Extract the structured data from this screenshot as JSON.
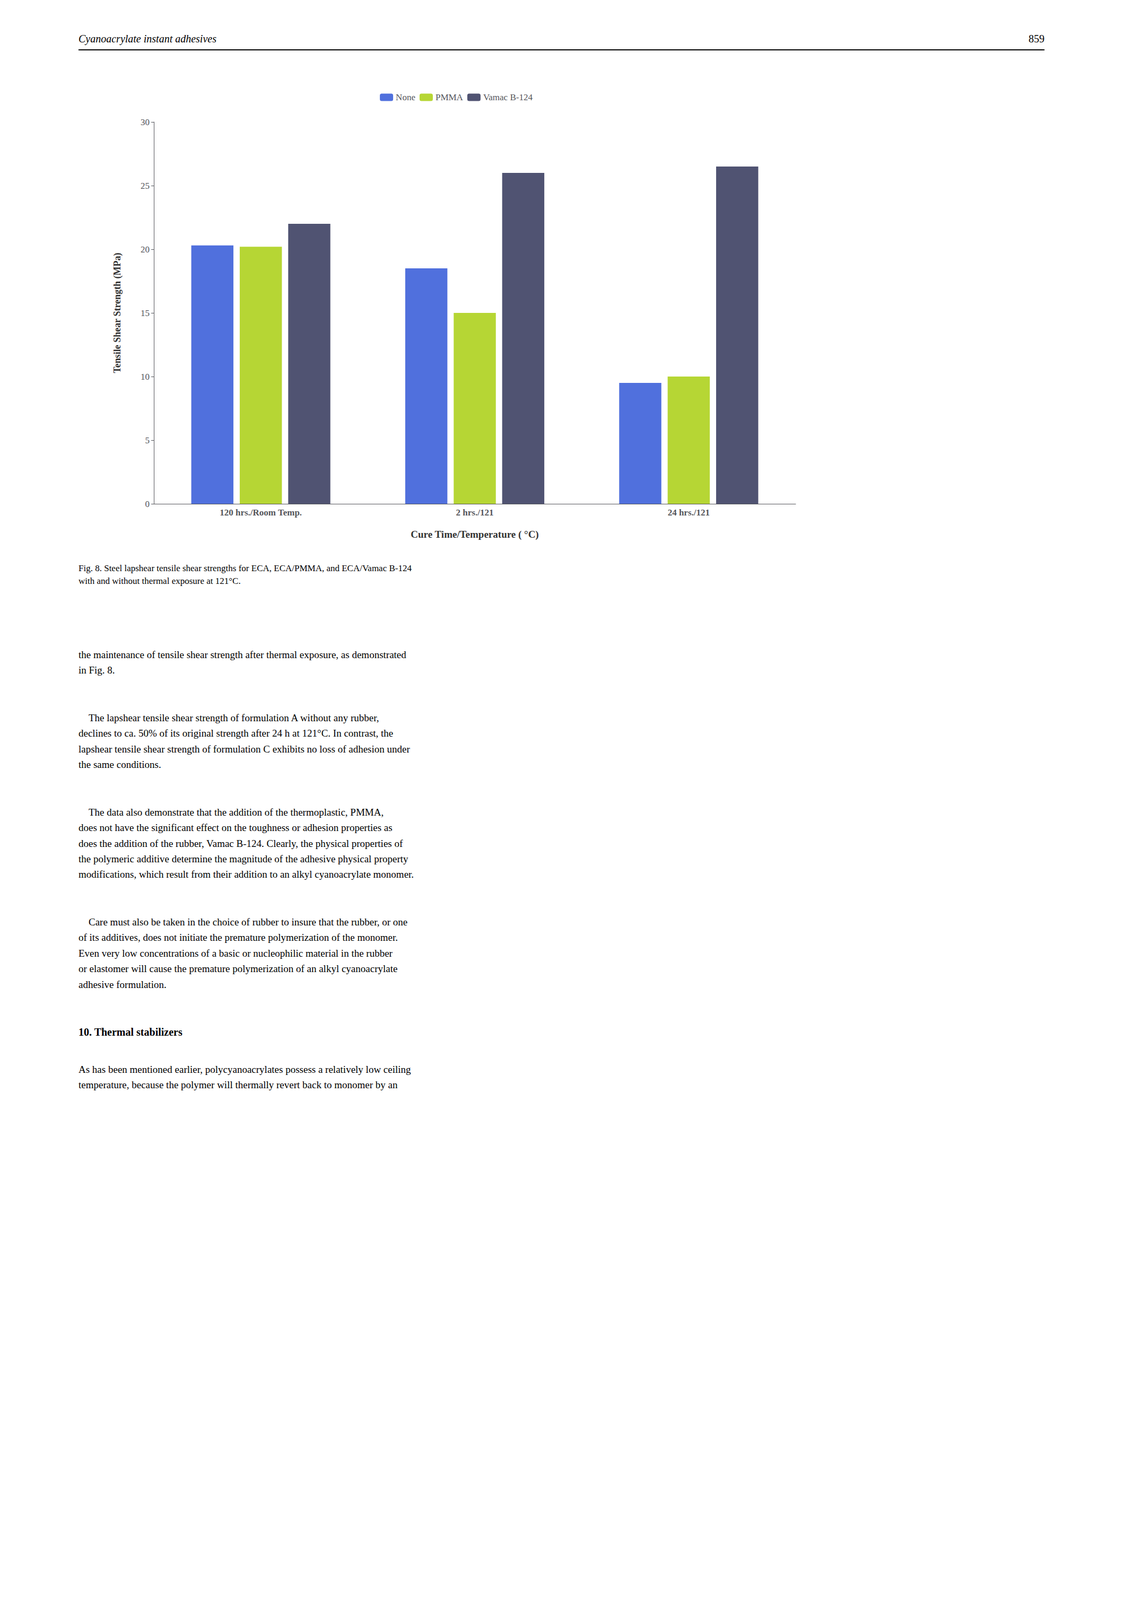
{
  "header_left": "Cyanoacrylate instant adhesives",
  "header_right": "859",
  "chart_data": {
    "type": "bar",
    "categories": [
      "120 hrs./Room Temp.",
      "2 hrs./121",
      "24 hrs./121"
    ],
    "series": [
      {
        "name": "None",
        "values": [
          20.3,
          18.5,
          9.5
        ]
      },
      {
        "name": "PMMA",
        "values": [
          20.2,
          15.0,
          10.0
        ]
      },
      {
        "name": "Vamac B-124",
        "values": [
          22.0,
          26.0,
          26.5
        ]
      }
    ],
    "ylim": [
      0,
      30
    ],
    "yticks": [
      0,
      5,
      10,
      15,
      20,
      25,
      30
    ],
    "ylabel": "Tensile Shear Strength (MPa)",
    "xlabel": "Cure Time/Temperature ( °C)",
    "grid": false,
    "legend": "upper center"
  },
  "caption": [
    "Fig. 8. Steel lapshear tensile shear strengths for ECA, ECA/PMMA, and ECA/Vamac B-124",
    "with and without thermal exposure at 121°C."
  ],
  "paragraphs": [
    "the maintenance of tensile shear strength after thermal exposure, as demonstrated\nin Fig. 8.",
    "    The lapshear tensile shear strength of formulation A without any rubber,\ndeclines to ca. 50% of its original strength after 24 h at 121°C. In contrast, the\nlapshear tensile shear strength of formulation C exhibits no loss of adhesion under\nthe same conditions.",
    "    The data also demonstrate that the addition of the thermoplastic, PMMA,\ndoes not have the significant effect on the toughness or adhesion properties as\ndoes the addition of the rubber, Vamac B-124. Clearly, the physical properties of\nthe polymeric additive determine the magnitude of the adhesive physical property\nmodifications, which result from their addition to an alkyl cyanoacrylate monomer.",
    "    Care must also be taken in the choice of rubber to insure that the rubber, or one\nof its additives, does not initiate the premature polymerization of the monomer.\nEven very low concentrations of a basic or nucleophilic material in the rubber\nor elastomer will cause the premature polymerization of an alkyl cyanoacrylate\nadhesive formulation."
  ],
  "section_title": "10. Thermal stabilizers",
  "section_body": "As has been mentioned earlier, polycyanoacrylates possess a relatively low ceiling\ntemperature, because the polymer will thermally revert back to monomer by an"
}
